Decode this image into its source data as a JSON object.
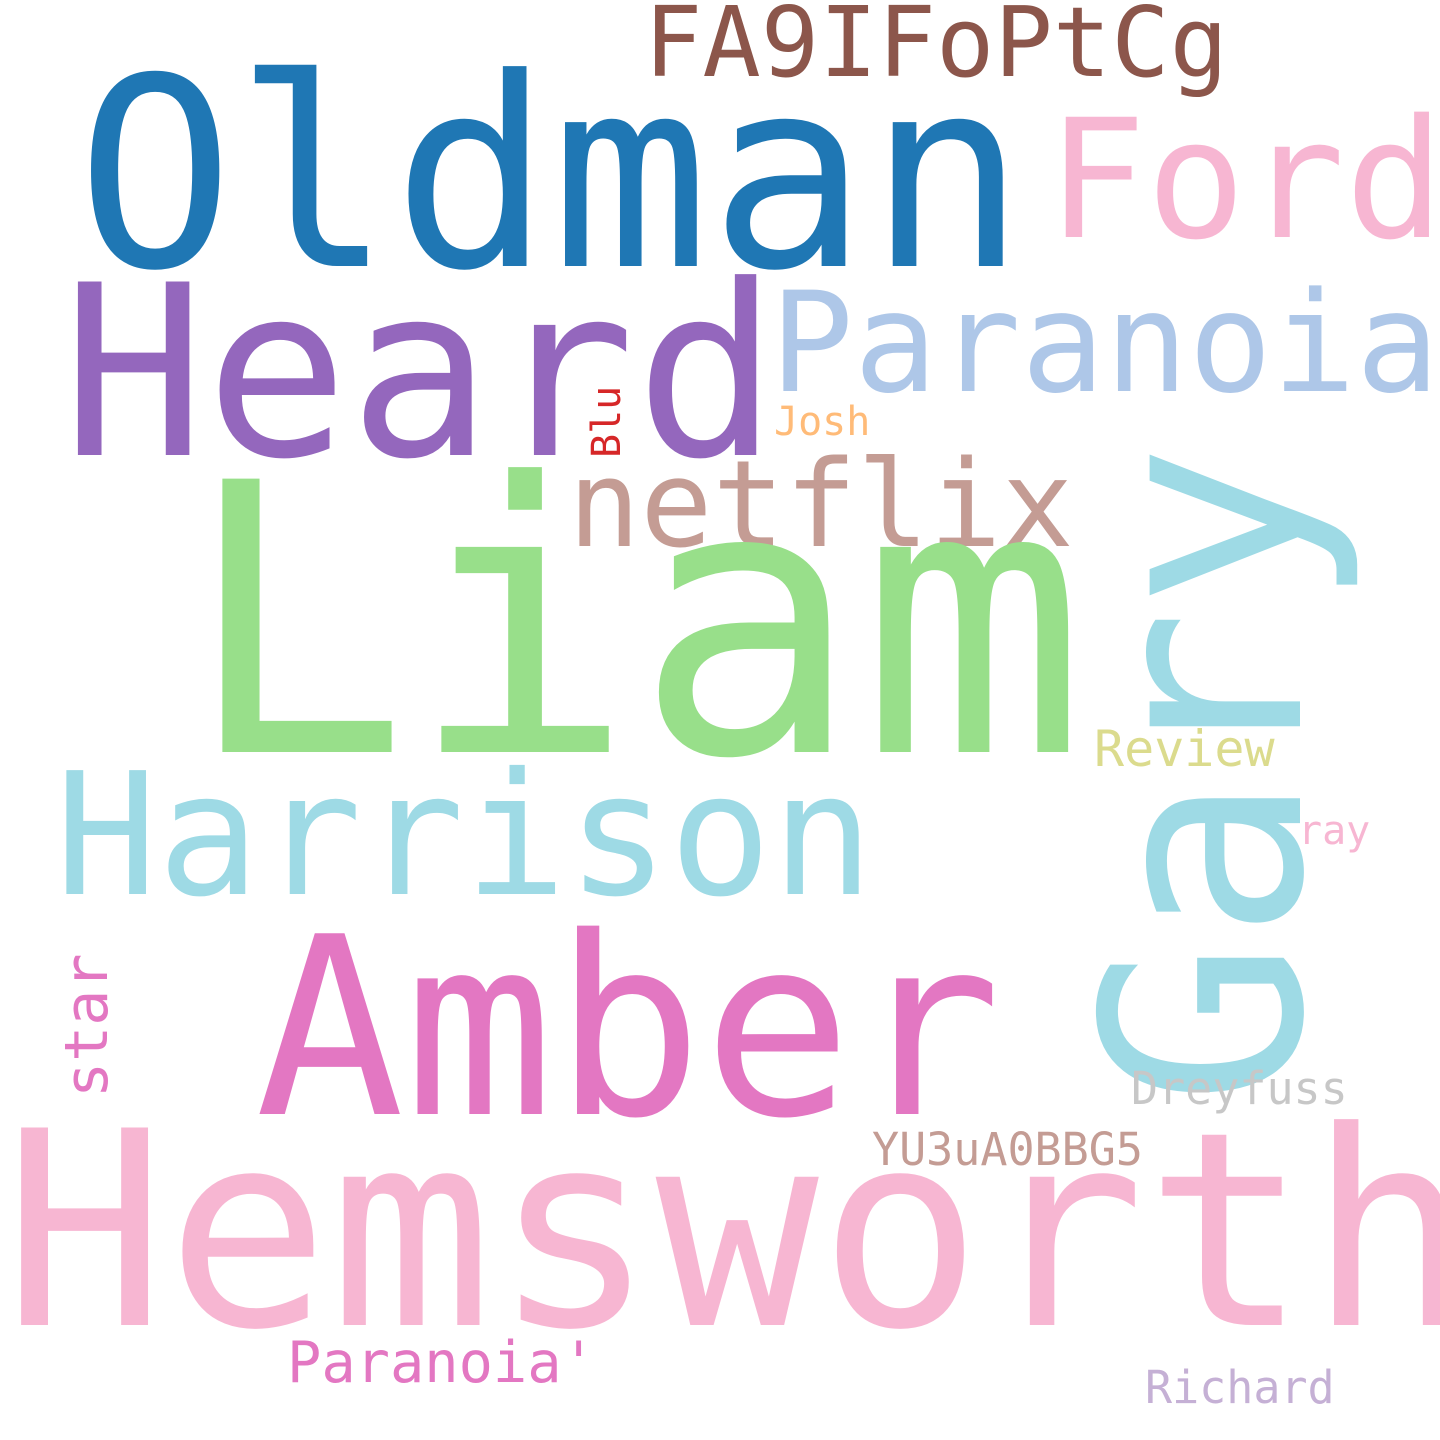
{
  "words": {
    "oldman": {
      "text": "Oldman",
      "color": "#1f77b4"
    },
    "heard": {
      "text": "Heard",
      "color": "#9467bd"
    },
    "liam": {
      "text": "Liam",
      "color": "#98df8a"
    },
    "gary": {
      "text": "Gary",
      "color": "#9edae5"
    },
    "hemsworth": {
      "text": "Hemsworth",
      "color": "#f7b6d2"
    },
    "amber": {
      "text": "Amber",
      "color": "#e377c2"
    },
    "harrison": {
      "text": "Harrison",
      "color": "#9edae5"
    },
    "paranoia": {
      "text": "Paranoia",
      "color": "#aec7e8"
    },
    "ford": {
      "text": "Ford",
      "color": "#f7b6d2"
    },
    "netflix": {
      "text": "netflix",
      "color": "#c49c94"
    },
    "fa9ifoptcg": {
      "text": "FA9IFoPtCg",
      "color": "#8c564b"
    },
    "josh": {
      "text": "Josh",
      "color": "#ffbb78"
    },
    "blu": {
      "text": "Blu",
      "color": "#d62728"
    },
    "review": {
      "text": "Review",
      "color": "#dbdb8d"
    },
    "ray": {
      "text": "ray",
      "color": "#f7b6d2"
    },
    "star": {
      "text": "star",
      "color": "#e377c2"
    },
    "dreyfuss": {
      "text": "Dreyfuss",
      "color": "#c7c7c7"
    },
    "yu3ua0bbg5": {
      "text": "YU3uA0BBG5",
      "color": "#c49c94"
    },
    "paranoia_quote": {
      "text": "Paranoia'",
      "color": "#e377c2"
    },
    "richard": {
      "text": "Richard",
      "color": "#c5b0d5"
    }
  }
}
